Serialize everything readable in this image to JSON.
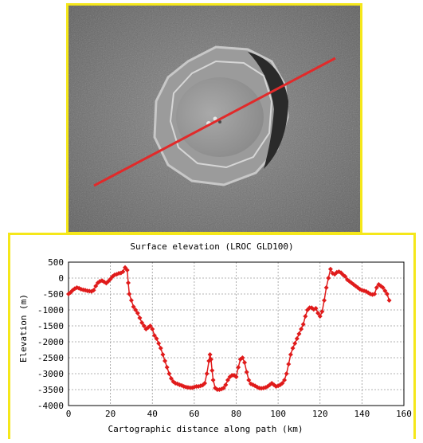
{
  "photo": {
    "frame_color": "#f5e71a",
    "path_line_color": "#e12a2a"
  },
  "chart_data": {
    "type": "line",
    "title": "Surface elevation (LROC GLD100)",
    "xlabel": "Cartographic distance along path (km)",
    "ylabel": "Elevation (m)",
    "xlim": [
      0,
      160
    ],
    "ylim": [
      -4000,
      500
    ],
    "xticks": [
      0,
      20,
      40,
      60,
      80,
      100,
      120,
      140,
      160
    ],
    "yticks": [
      500,
      0,
      -500,
      -1000,
      -1500,
      -2000,
      -2500,
      -3000,
      -3500,
      -4000
    ],
    "xtick_labels": [
      "0",
      "20",
      "40",
      "60",
      "80",
      "100",
      "120",
      "140",
      "160"
    ],
    "ytick_labels": [
      "500",
      "0",
      "-500",
      "-1000",
      "-1500",
      "-2000",
      "-2500",
      "-3000",
      "-3500",
      "-4000"
    ],
    "grid": true,
    "marker": "diamond",
    "color": "#e01b1b",
    "series": [
      {
        "points": [
          [
            0,
            -500
          ],
          [
            1,
            -450
          ],
          [
            2,
            -380
          ],
          [
            3,
            -330
          ],
          [
            4,
            -300
          ],
          [
            5,
            -320
          ],
          [
            6,
            -350
          ],
          [
            7,
            -370
          ],
          [
            8,
            -380
          ],
          [
            9,
            -400
          ],
          [
            10,
            -410
          ],
          [
            11,
            -420
          ],
          [
            12,
            -380
          ],
          [
            13,
            -250
          ],
          [
            14,
            -150
          ],
          [
            15,
            -100
          ],
          [
            16,
            -80
          ],
          [
            17,
            -120
          ],
          [
            18,
            -160
          ],
          [
            19,
            -100
          ],
          [
            20,
            -30
          ],
          [
            21,
            50
          ],
          [
            22,
            100
          ],
          [
            23,
            120
          ],
          [
            24,
            150
          ],
          [
            25,
            160
          ],
          [
            26,
            200
          ],
          [
            27,
            330
          ],
          [
            28,
            250
          ],
          [
            28.5,
            -150
          ],
          [
            29,
            -500
          ],
          [
            30,
            -700
          ],
          [
            31,
            -900
          ],
          [
            32,
            -1000
          ],
          [
            33,
            -1100
          ],
          [
            34,
            -1250
          ],
          [
            35,
            -1400
          ],
          [
            36,
            -1500
          ],
          [
            37,
            -1600
          ],
          [
            38,
            -1550
          ],
          [
            39,
            -1500
          ],
          [
            40,
            -1600
          ],
          [
            41,
            -1800
          ],
          [
            42,
            -1900
          ],
          [
            43,
            -2050
          ],
          [
            44,
            -2200
          ],
          [
            45,
            -2400
          ],
          [
            46,
            -2600
          ],
          [
            47,
            -2800
          ],
          [
            48,
            -3000
          ],
          [
            49,
            -3150
          ],
          [
            50,
            -3250
          ],
          [
            51,
            -3300
          ],
          [
            52,
            -3320
          ],
          [
            53,
            -3350
          ],
          [
            54,
            -3370
          ],
          [
            55,
            -3400
          ],
          [
            56,
            -3420
          ],
          [
            57,
            -3430
          ],
          [
            58,
            -3440
          ],
          [
            59,
            -3440
          ],
          [
            60,
            -3420
          ],
          [
            61,
            -3400
          ],
          [
            62,
            -3400
          ],
          [
            63,
            -3380
          ],
          [
            64,
            -3360
          ],
          [
            65,
            -3300
          ],
          [
            66,
            -3000
          ],
          [
            67,
            -2600
          ],
          [
            67.5,
            -2400
          ],
          [
            68,
            -2550
          ],
          [
            68.5,
            -2900
          ],
          [
            69,
            -3200
          ],
          [
            70,
            -3450
          ],
          [
            71,
            -3500
          ],
          [
            72,
            -3500
          ],
          [
            73,
            -3480
          ],
          [
            74,
            -3450
          ],
          [
            75,
            -3350
          ],
          [
            76,
            -3200
          ],
          [
            77,
            -3100
          ],
          [
            78,
            -3050
          ],
          [
            79,
            -3050
          ],
          [
            80,
            -3100
          ],
          [
            81,
            -2800
          ],
          [
            82,
            -2550
          ],
          [
            83,
            -2500
          ],
          [
            84,
            -2650
          ],
          [
            85,
            -2950
          ],
          [
            86,
            -3200
          ],
          [
            87,
            -3320
          ],
          [
            88,
            -3350
          ],
          [
            89,
            -3380
          ],
          [
            90,
            -3420
          ],
          [
            91,
            -3450
          ],
          [
            92,
            -3460
          ],
          [
            93,
            -3450
          ],
          [
            94,
            -3430
          ],
          [
            95,
            -3400
          ],
          [
            96,
            -3350
          ],
          [
            97,
            -3300
          ],
          [
            98,
            -3350
          ],
          [
            99,
            -3400
          ],
          [
            100,
            -3380
          ],
          [
            101,
            -3350
          ],
          [
            102,
            -3300
          ],
          [
            103,
            -3200
          ],
          [
            104,
            -3000
          ],
          [
            105,
            -2700
          ],
          [
            106,
            -2400
          ],
          [
            107,
            -2200
          ],
          [
            108,
            -2050
          ],
          [
            109,
            -1900
          ],
          [
            110,
            -1750
          ],
          [
            111,
            -1600
          ],
          [
            112,
            -1450
          ],
          [
            113,
            -1200
          ],
          [
            114,
            -1000
          ],
          [
            115,
            -930
          ],
          [
            116,
            -930
          ],
          [
            117,
            -980
          ],
          [
            118,
            -950
          ],
          [
            119,
            -1100
          ],
          [
            120,
            -1200
          ],
          [
            121,
            -1050
          ],
          [
            122,
            -700
          ],
          [
            123,
            -300
          ],
          [
            124,
            0
          ],
          [
            125,
            280
          ],
          [
            126,
            150
          ],
          [
            127,
            120
          ],
          [
            128,
            180
          ],
          [
            129,
            200
          ],
          [
            130,
            170
          ],
          [
            131,
            100
          ],
          [
            132,
            50
          ],
          [
            133,
            -50
          ],
          [
            134,
            -100
          ],
          [
            135,
            -150
          ],
          [
            136,
            -200
          ],
          [
            137,
            -250
          ],
          [
            138,
            -300
          ],
          [
            139,
            -350
          ],
          [
            140,
            -380
          ],
          [
            141,
            -400
          ],
          [
            142,
            -420
          ],
          [
            143,
            -460
          ],
          [
            144,
            -500
          ],
          [
            145,
            -520
          ],
          [
            146,
            -500
          ],
          [
            147,
            -300
          ],
          [
            148,
            -200
          ],
          [
            149,
            -250
          ],
          [
            150,
            -300
          ],
          [
            151,
            -400
          ],
          [
            152,
            -500
          ],
          [
            153,
            -700
          ]
        ]
      }
    ]
  }
}
